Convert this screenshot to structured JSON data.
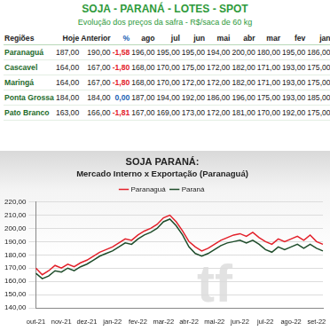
{
  "header": {
    "title": "SOJA - PARANÁ - LOTES - SPOT",
    "subtitle": "Evolução dos preços da safra - R$/saca de 60 kg"
  },
  "table": {
    "columns": [
      "Regiões",
      "Hoje",
      "Anterior",
      "%",
      "ago",
      "jul",
      "jun",
      "mai",
      "abr",
      "mar",
      "fev",
      "jan"
    ],
    "rows": [
      [
        "Paranaguá",
        "187,00",
        "190,00",
        "-1,58",
        "196,00",
        "195,00",
        "195,00",
        "194,00",
        "200,00",
        "180,00",
        "195,00",
        "186,00"
      ],
      [
        "Cascavel",
        "164,00",
        "167,00",
        "-1,80",
        "168,00",
        "170,00",
        "175,00",
        "172,00",
        "182,00",
        "171,00",
        "193,00",
        "175,00"
      ],
      [
        "Maringá",
        "164,00",
        "167,00",
        "-1,80",
        "168,00",
        "170,00",
        "172,00",
        "172,00",
        "182,00",
        "171,00",
        "193,00",
        "175,00"
      ],
      [
        "Ponta Grossa",
        "184,00",
        "184,00",
        "0,00",
        "187,00",
        "194,00",
        "192,00",
        "186,00",
        "196,00",
        "175,00",
        "193,00",
        "185,00"
      ],
      [
        "Pato Branco",
        "163,00",
        "166,00",
        "-1,81",
        "167,00",
        "169,00",
        "173,00",
        "172,00",
        "181,00",
        "170,00",
        "192,00",
        "175,00"
      ]
    ]
  },
  "logo": "tf",
  "chart_data": {
    "type": "line",
    "title": "SOJA PARANÁ:",
    "subtitle": "Mercado Interno x Exportação (Paranaguá)",
    "categories": [
      "out-21",
      null,
      null,
      null,
      "nov-21",
      null,
      null,
      null,
      "dez-21",
      null,
      null,
      null,
      "jan-22",
      null,
      null,
      null,
      "fev-22",
      null,
      null,
      null,
      "mar-22",
      null,
      null,
      null,
      "abr-22",
      null,
      null,
      null,
      "mai-22",
      null,
      null,
      null,
      "jun-22",
      null,
      null,
      null,
      "jul-22",
      null,
      null,
      null,
      "ago-22",
      null,
      null,
      null,
      "set-22",
      null
    ],
    "series": [
      {
        "name": "Paranaguá",
        "color": "#e3202a",
        "values": [
          170,
          165,
          168,
          172,
          170,
          173,
          171,
          174,
          176,
          179,
          182,
          184,
          186,
          189,
          192,
          191,
          195,
          198,
          200,
          203,
          208,
          210,
          205,
          198,
          190,
          186,
          183,
          185,
          188,
          191,
          193,
          195,
          196,
          194,
          197,
          193,
          190,
          188,
          192,
          190,
          192,
          194,
          191,
          195,
          190,
          188
        ]
      },
      {
        "name": "Paraná",
        "color": "#1f4d2b",
        "values": [
          166,
          162,
          164,
          168,
          167,
          170,
          168,
          171,
          173,
          176,
          179,
          181,
          183,
          186,
          189,
          188,
          192,
          195,
          197,
          200,
          205,
          207,
          202,
          195,
          186,
          181,
          179,
          181,
          184,
          187,
          189,
          190,
          191,
          189,
          191,
          188,
          184,
          182,
          186,
          184,
          186,
          188,
          185,
          188,
          185,
          183
        ]
      }
    ],
    "ylim": [
      140,
      220
    ],
    "yticks": [
      {
        "value": 140,
        "label": "140,00"
      },
      {
        "value": 150,
        "label": "150,00"
      },
      {
        "value": 160,
        "label": "160,00"
      },
      {
        "value": 170,
        "label": "170,00"
      },
      {
        "value": 180,
        "label": "180,00"
      },
      {
        "value": 190,
        "label": "190,00"
      },
      {
        "value": 200,
        "label": "200,00"
      },
      {
        "value": 210,
        "label": "210,00"
      },
      {
        "value": 220,
        "label": "220,00"
      }
    ],
    "grid": "y",
    "legend": "top"
  }
}
